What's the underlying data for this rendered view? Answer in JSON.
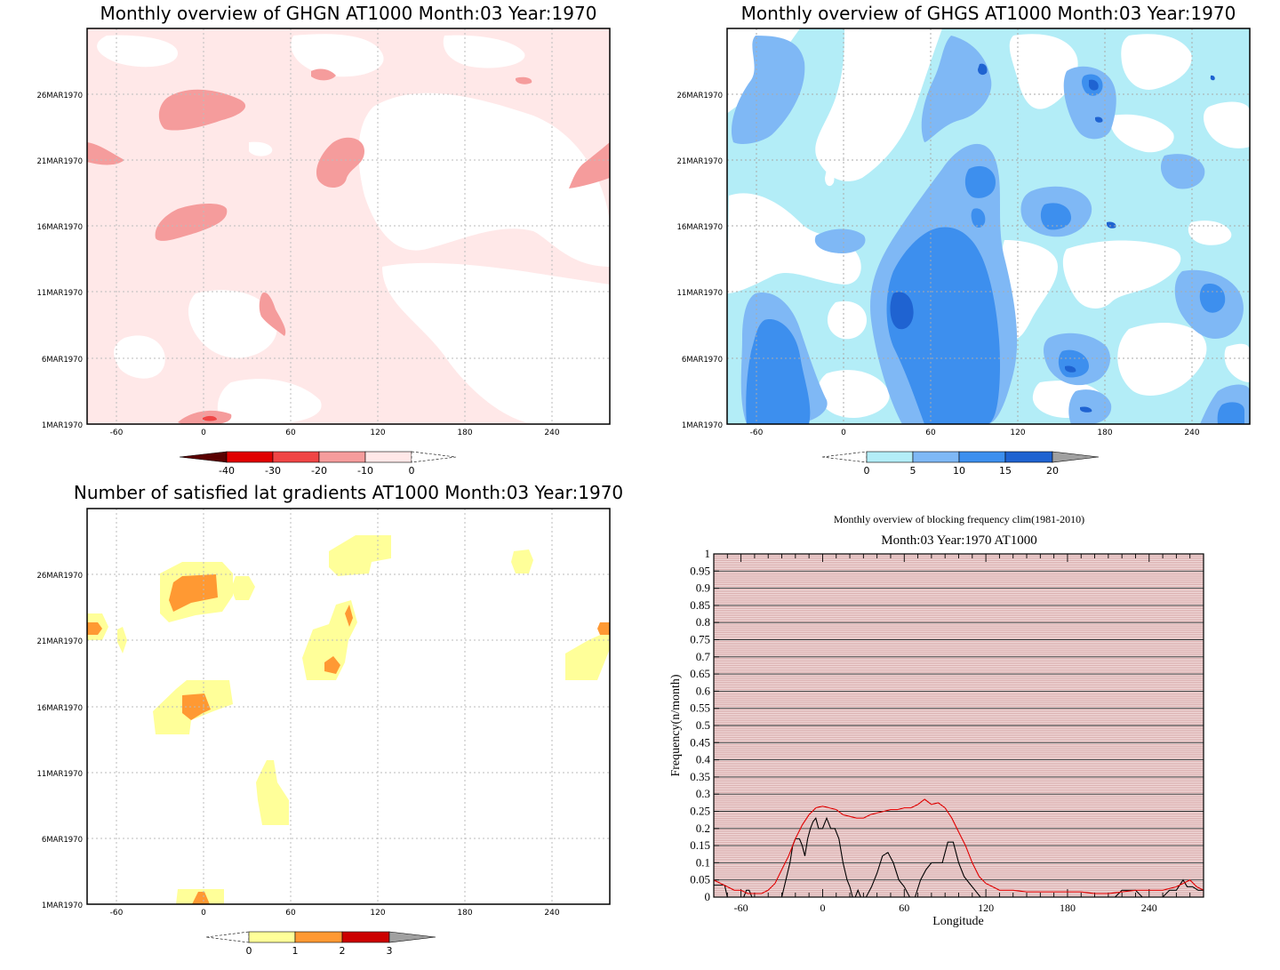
{
  "panels": [
    {
      "id": "ghgn",
      "title": "Monthly overview of GHGN AT1000 Month:03 Year:1970",
      "xticks": [
        "-60",
        "0",
        "60",
        "120",
        "180",
        "240"
      ],
      "yticks": [
        "1MAR1970",
        "6MAR1970",
        "11MAR1970",
        "16MAR1970",
        "21MAR1970",
        "26MAR1970"
      ],
      "colorbar": {
        "labels": [
          "-40",
          "-30",
          "-20",
          "-10",
          "0"
        ],
        "colors": [
          "#5a0000",
          "#e00000",
          "#f04545",
          "#f59c9c",
          "#ffe8e8"
        ]
      }
    },
    {
      "id": "ghgs",
      "title": "Monthly overview of GHGS AT1000 Month:03 Year:1970",
      "xticks": [
        "-60",
        "0",
        "60",
        "120",
        "180",
        "240"
      ],
      "yticks": [
        "1MAR1970",
        "6MAR1970",
        "11MAR1970",
        "16MAR1970",
        "21MAR1970",
        "26MAR1970"
      ],
      "colorbar": {
        "labels": [
          "0",
          "5",
          "10",
          "15",
          "20"
        ],
        "colors": [
          "#b3edf7",
          "#7fb8f5",
          "#3d8fee",
          "#1f63d1",
          "#a0a0a0"
        ]
      }
    },
    {
      "id": "gradients",
      "title": "Number of satisfied lat gradients AT1000 Month:03 Year:1970",
      "xticks": [
        "-60",
        "0",
        "60",
        "120",
        "180",
        "240"
      ],
      "yticks": [
        "1MAR1970",
        "6MAR1970",
        "11MAR1970",
        "16MAR1970",
        "21MAR1970",
        "26MAR1970"
      ],
      "colorbar": {
        "labels": [
          "0",
          "1",
          "2",
          "3"
        ],
        "colors": [
          "#ffff99",
          "#ff9933",
          "#cc0000",
          "#a0a0a0"
        ]
      }
    }
  ],
  "colors": {
    "pink_light": "#ffe8e8",
    "pink_mid": "#f59c9c",
    "blue_light": "#b3edf7",
    "blue_mid": "#7fb8f5",
    "blue_strong": "#3d8fee",
    "blue_dark": "#1f63d1",
    "yellow": "#ffff99",
    "orange": "#ff9933",
    "line_black": "#000000",
    "line_red": "#e00000"
  },
  "chart_data": [
    {
      "type": "heatmap",
      "title": "Monthly overview of GHGN AT1000 Month:03 Year:1970",
      "xlim": [
        -75,
        285
      ],
      "ylim": [
        "1MAR1970",
        "31MAR1970"
      ],
      "levels": [
        -40,
        -30,
        -20,
        -10,
        0
      ],
      "grid": true
    },
    {
      "type": "heatmap",
      "title": "Monthly overview of GHGS AT1000 Month:03 Year:1970",
      "xlim": [
        -75,
        285
      ],
      "ylim": [
        "1MAR1970",
        "31MAR1970"
      ],
      "levels": [
        0,
        5,
        10,
        15,
        20
      ],
      "grid": true
    },
    {
      "type": "heatmap",
      "title": "Number of satisfied lat gradients AT1000 Month:03 Year:1970",
      "xlim": [
        -75,
        285
      ],
      "ylim": [
        "1MAR1970",
        "31MAR1970"
      ],
      "levels": [
        0,
        1,
        2,
        3
      ],
      "grid": true
    },
    {
      "type": "line",
      "title": "Monthly overview of blocking frequency clim(1981-2010)",
      "subtitle": "Month:03 Year:1970  AT1000",
      "xlabel": "Longitude",
      "ylabel": "Frequency(n/month)",
      "xlim": [
        -80,
        280
      ],
      "ylim": [
        0,
        1
      ],
      "xticks": [
        "-60",
        "0",
        "60",
        "120",
        "180",
        "240"
      ],
      "yticks": [
        "0",
        "0.05",
        "0.1",
        "0.15",
        "0.2",
        "0.25",
        "0.3",
        "0.35",
        "0.4",
        "0.45",
        "0.5",
        "0.55",
        "0.6",
        "0.65",
        "0.7",
        "0.75",
        "0.8",
        "0.85",
        "0.9",
        "0.95",
        "1"
      ],
      "series": [
        {
          "color": "#000000",
          "x": [
            -80,
            -75,
            -72,
            -70,
            -66,
            -62,
            -58,
            -56,
            -54,
            -52,
            -48,
            -45,
            -40,
            -35,
            -30,
            -27,
            -24,
            -22,
            -20,
            -17,
            -15,
            -13,
            -11,
            -9,
            -7,
            -5,
            -3,
            0,
            3,
            6,
            9,
            12,
            15,
            18,
            20,
            22,
            24,
            26,
            28,
            32,
            36,
            40,
            44,
            48,
            52,
            56,
            60,
            64,
            68,
            72,
            76,
            80,
            84,
            88,
            92,
            96,
            100,
            104,
            108,
            112,
            116,
            120,
            125,
            130,
            135,
            140,
            150,
            170,
            190,
            200,
            210,
            215,
            220,
            225,
            230,
            235,
            240,
            245,
            250,
            255,
            260,
            265,
            268,
            272,
            276,
            280
          ],
          "y": [
            0.035,
            0.035,
            0.035,
            0.0,
            0.0,
            0.0,
            0.0,
            0.02,
            0.02,
            0.0,
            0.0,
            0.0,
            0.0,
            0.0,
            0.0,
            0.05,
            0.1,
            0.15,
            0.17,
            0.17,
            0.15,
            0.12,
            0.17,
            0.2,
            0.22,
            0.23,
            0.2,
            0.2,
            0.23,
            0.2,
            0.2,
            0.17,
            0.1,
            0.05,
            0.03,
            0.0,
            0.0,
            0.02,
            0.0,
            0.0,
            0.03,
            0.07,
            0.12,
            0.13,
            0.1,
            0.05,
            0.03,
            0.0,
            0.0,
            0.05,
            0.08,
            0.1,
            0.1,
            0.1,
            0.16,
            0.16,
            0.1,
            0.06,
            0.04,
            0.02,
            0.0,
            0.0,
            0.0,
            0.0,
            0.0,
            0.0,
            0.0,
            0.0,
            0.0,
            0.0,
            0.0,
            0.0,
            0.02,
            0.02,
            0.02,
            0.0,
            0.0,
            0.0,
            0.0,
            0.02,
            0.02,
            0.05,
            0.03,
            0.03,
            0.02,
            0.02
          ]
        },
        {
          "color": "#e00000",
          "x": [
            -80,
            -75,
            -70,
            -65,
            -60,
            -55,
            -50,
            -45,
            -40,
            -35,
            -30,
            -25,
            -20,
            -15,
            -10,
            -5,
            0,
            5,
            10,
            15,
            20,
            25,
            30,
            35,
            40,
            45,
            50,
            55,
            60,
            65,
            70,
            75,
            80,
            85,
            90,
            95,
            100,
            105,
            110,
            115,
            120,
            125,
            130,
            135,
            140,
            150,
            160,
            170,
            180,
            190,
            200,
            210,
            220,
            230,
            240,
            250,
            260,
            265,
            270,
            275,
            280
          ],
          "y": [
            0.05,
            0.04,
            0.03,
            0.02,
            0.02,
            0.01,
            0.01,
            0.01,
            0.02,
            0.04,
            0.08,
            0.12,
            0.17,
            0.21,
            0.24,
            0.26,
            0.265,
            0.26,
            0.255,
            0.24,
            0.235,
            0.23,
            0.23,
            0.24,
            0.245,
            0.25,
            0.255,
            0.255,
            0.26,
            0.26,
            0.27,
            0.285,
            0.27,
            0.275,
            0.26,
            0.23,
            0.19,
            0.15,
            0.1,
            0.06,
            0.04,
            0.03,
            0.02,
            0.02,
            0.02,
            0.015,
            0.015,
            0.015,
            0.015,
            0.015,
            0.01,
            0.01,
            0.015,
            0.02,
            0.02,
            0.02,
            0.03,
            0.04,
            0.05,
            0.03,
            0.02
          ]
        }
      ],
      "grid": true
    }
  ]
}
